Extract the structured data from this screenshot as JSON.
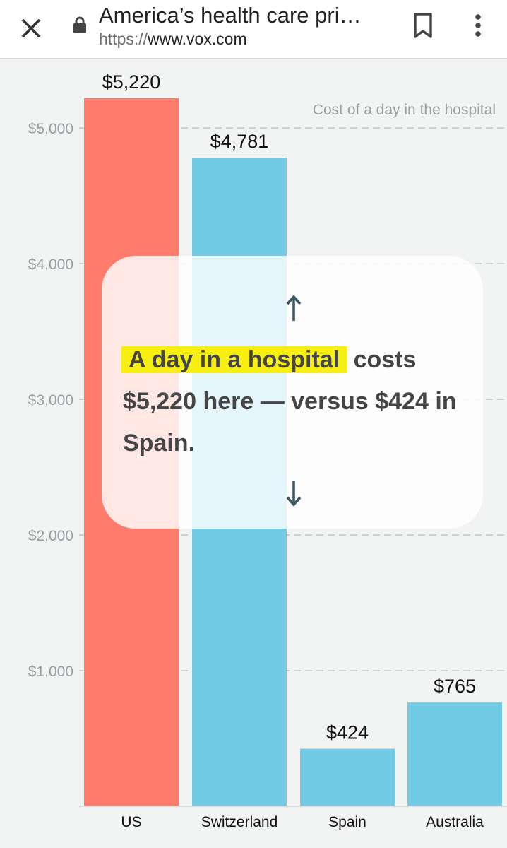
{
  "browser": {
    "page_title": "America’s health care pri…",
    "url_scheme": "https://",
    "url_host": "www.vox.com",
    "icons": [
      "close-icon",
      "lock-icon",
      "bookmark-icon",
      "more-vert-icon"
    ]
  },
  "overlay": {
    "highlight": "A day in a hospital",
    "text_rest": " costs $5,220 here — versus $424 in Spain.",
    "arrow_up": "↑",
    "arrow_down": "↓"
  },
  "chart_data": {
    "type": "bar",
    "title": "Cost of a day in the hospital",
    "categories": [
      "US",
      "Switzerland",
      "Spain",
      "Australia"
    ],
    "values": [
      5220,
      4781,
      424,
      765
    ],
    "value_labels": [
      "$5,220",
      "$4,781",
      "$424",
      "$765"
    ],
    "ylim": [
      0,
      5000
    ],
    "yticks": [
      1000,
      2000,
      3000,
      4000,
      5000
    ],
    "ytick_labels": [
      "$1,000",
      "$2,000",
      "$3,000",
      "$4,000",
      "$5,000"
    ],
    "grid": true,
    "colors": [
      "#ff7b6c",
      "#72cbe4",
      "#72cbe4",
      "#72cbe4"
    ]
  }
}
